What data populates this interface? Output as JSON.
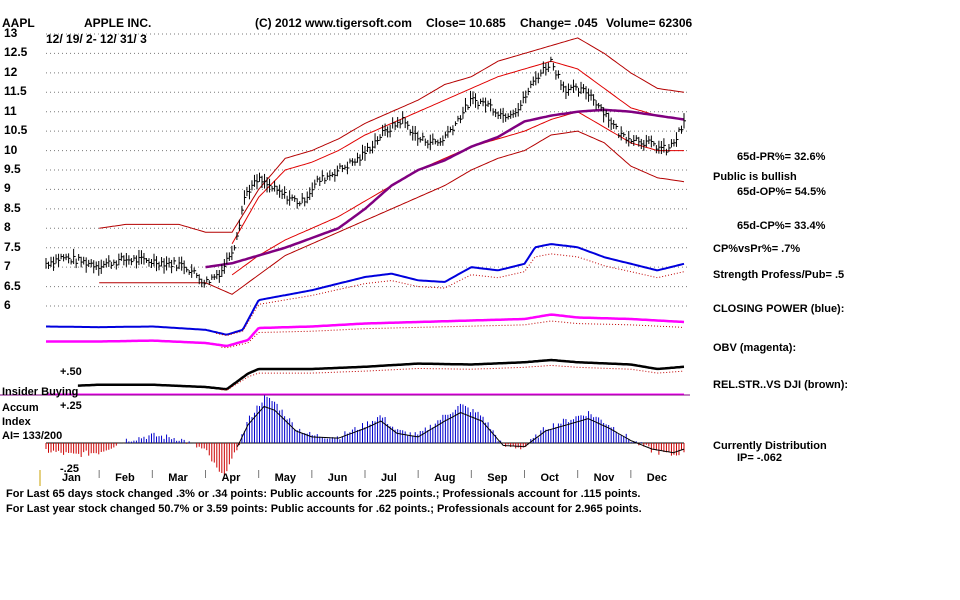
{
  "header": {
    "ticker": "AAPL",
    "company": "APPLE INC.",
    "copyright": "(C) 2012 www.tigersoft.com",
    "close": "Close=  10.685",
    "change": "Change= .045",
    "volume": "Volume= 62306",
    "date_range": "12/ 19/ 2- 12/ 31/ 3"
  },
  "side_labels": {
    "pr": "65d-PR%= 32.6%",
    "public": "Public is bullish",
    "op": "65d-OP%= 54.5%",
    "cp": "65d-CP%= 33.4%",
    "cpvspr": "CP%vsPr%=  .7%",
    "strength": "Strength Profess/Pub= .5",
    "closing_power": "CLOSING POWER (blue):",
    "obv": "OBV (magenta):",
    "relstr": "REL.STR..VS DJI (brown):",
    "distribution": "Currently Distribution",
    "ip": "IP= -.062"
  },
  "indicator_labels": {
    "insider_1": "Insider Buying",
    "insider_2": "Accum",
    "insider_3": "Index",
    "ai": "AI= 133/200",
    "plus50": "+.50",
    "plus25": "+.25",
    "minus25": "-.25"
  },
  "footer": {
    "line1": "For Last 65 days stock changed  .3% or  .34 points:  Public accounts for  .225 points.;  Professionals account for  .115 points.",
    "line2": "For Last year stock changed  50.7% or  3.59 points:  Public accounts for  .62 points.;  Professionals account for  2.965 points."
  },
  "colors": {
    "price": "#000000",
    "band": "#b40000",
    "ma": "#800080",
    "closing_power": "#0000dd",
    "obv": "#ff00ff",
    "relstr": "#000000",
    "accum_pos": "#0000cc",
    "accum_neg": "#cc0000",
    "grid": "#7a7a7a"
  },
  "chart_data": {
    "type": "line",
    "title": "APPLE INC. (AAPL) 12/19/2 - 12/31/3",
    "ylim": [
      6,
      13
    ],
    "y_ticks": [
      "13",
      "12.5",
      "12",
      "11.5",
      "11",
      "10.5",
      "10",
      "9.5",
      "9",
      "8.5",
      "8",
      "7.5",
      "7",
      "6.5",
      "6"
    ],
    "months": [
      "Jan",
      "Feb",
      "Mar",
      "Apr",
      "May",
      "Jun",
      "Jul",
      "Aug",
      "Sep",
      "Oct",
      "Nov",
      "Dec"
    ],
    "price_anchors": [
      [
        0,
        7.1
      ],
      [
        0.3,
        7.25
      ],
      [
        1.0,
        7.05
      ],
      [
        1.5,
        7.2
      ],
      [
        2.0,
        7.15
      ],
      [
        2.6,
        7.05
      ],
      [
        3.0,
        6.6
      ],
      [
        3.3,
        6.9
      ],
      [
        3.55,
        7.6
      ],
      [
        3.75,
        8.9
      ],
      [
        4.0,
        9.25
      ],
      [
        4.4,
        8.9
      ],
      [
        4.8,
        8.65
      ],
      [
        5.1,
        9.2
      ],
      [
        5.5,
        9.5
      ],
      [
        5.9,
        9.8
      ],
      [
        6.3,
        10.4
      ],
      [
        6.7,
        10.8
      ],
      [
        7.0,
        10.3
      ],
      [
        7.4,
        10.2
      ],
      [
        7.7,
        10.7
      ],
      [
        8.0,
        11.3
      ],
      [
        8.3,
        11.2
      ],
      [
        8.6,
        10.9
      ],
      [
        8.9,
        11.1
      ],
      [
        9.2,
        11.85
      ],
      [
        9.5,
        12.3
      ],
      [
        9.75,
        11.6
      ],
      [
        10.2,
        11.5
      ],
      [
        10.5,
        11.0
      ],
      [
        10.8,
        10.4
      ],
      [
        11.1,
        10.3
      ],
      [
        11.4,
        10.15
      ],
      [
        11.7,
        10.0
      ],
      [
        11.85,
        10.3
      ],
      [
        12.0,
        10.7
      ]
    ],
    "ma_anchors": [
      [
        3.0,
        7.0
      ],
      [
        3.5,
        7.1
      ],
      [
        4.0,
        7.3
      ],
      [
        4.5,
        7.5
      ],
      [
        5.0,
        7.75
      ],
      [
        5.5,
        8.0
      ],
      [
        6.0,
        8.5
      ],
      [
        6.5,
        9.1
      ],
      [
        7.0,
        9.5
      ],
      [
        7.5,
        9.75
      ],
      [
        8.0,
        10.1
      ],
      [
        8.5,
        10.35
      ],
      [
        9.0,
        10.75
      ],
      [
        9.5,
        10.9
      ],
      [
        10.0,
        11.0
      ],
      [
        10.5,
        11.05
      ],
      [
        11.0,
        11.0
      ],
      [
        11.5,
        10.9
      ],
      [
        12.0,
        10.8
      ]
    ],
    "upper_band_anchors": [
      [
        1.0,
        8.0
      ],
      [
        1.5,
        8.1
      ],
      [
        2.5,
        8.1
      ],
      [
        3.0,
        7.9
      ],
      [
        3.5,
        7.9
      ],
      [
        4.0,
        9.0
      ],
      [
        4.5,
        9.8
      ],
      [
        5.0,
        10.0
      ],
      [
        5.5,
        10.3
      ],
      [
        6.0,
        10.7
      ],
      [
        6.5,
        11.0
      ],
      [
        7.0,
        11.3
      ],
      [
        7.5,
        11.7
      ],
      [
        8.0,
        11.9
      ],
      [
        8.5,
        12.3
      ],
      [
        9.0,
        12.5
      ],
      [
        9.5,
        12.7
      ],
      [
        10.0,
        12.9
      ],
      [
        10.5,
        12.5
      ],
      [
        11.0,
        12.0
      ],
      [
        11.5,
        11.6
      ],
      [
        12.0,
        11.5
      ]
    ],
    "lower_band_anchors": [
      [
        1.0,
        6.6
      ],
      [
        2.0,
        6.6
      ],
      [
        3.0,
        6.6
      ],
      [
        3.5,
        6.3
      ],
      [
        4.0,
        6.8
      ],
      [
        4.5,
        7.3
      ],
      [
        5.0,
        7.6
      ],
      [
        5.5,
        7.9
      ],
      [
        6.0,
        8.2
      ],
      [
        6.5,
        8.5
      ],
      [
        7.0,
        8.8
      ],
      [
        7.5,
        9.1
      ],
      [
        8.0,
        9.5
      ],
      [
        8.5,
        9.8
      ],
      [
        9.0,
        10.0
      ],
      [
        9.5,
        10.4
      ],
      [
        10.0,
        10.5
      ],
      [
        10.5,
        10.2
      ],
      [
        11.0,
        9.6
      ],
      [
        11.5,
        9.3
      ],
      [
        12.0,
        9.2
      ]
    ],
    "inner_upper_anchors": [
      [
        3.5,
        7.6
      ],
      [
        4.0,
        8.8
      ],
      [
        4.5,
        9.5
      ],
      [
        5.0,
        9.7
      ],
      [
        5.5,
        10.0
      ],
      [
        6.0,
        10.4
      ],
      [
        6.5,
        10.7
      ],
      [
        7.0,
        11.0
      ],
      [
        7.5,
        11.3
      ],
      [
        8.0,
        11.6
      ],
      [
        8.5,
        11.9
      ],
      [
        9.0,
        12.1
      ],
      [
        9.5,
        12.3
      ],
      [
        10.0,
        12.1
      ],
      [
        10.5,
        11.6
      ],
      [
        11.0,
        11.1
      ],
      [
        11.5,
        10.9
      ],
      [
        12.0,
        10.8
      ]
    ],
    "inner_lower_anchors": [
      [
        3.5,
        6.8
      ],
      [
        4.0,
        7.3
      ],
      [
        4.5,
        7.7
      ],
      [
        5.0,
        8.0
      ],
      [
        5.5,
        8.3
      ],
      [
        6.0,
        8.7
      ],
      [
        6.5,
        9.1
      ],
      [
        7.0,
        9.5
      ],
      [
        7.5,
        9.8
      ],
      [
        8.0,
        10.1
      ],
      [
        8.5,
        10.3
      ],
      [
        9.0,
        10.5
      ],
      [
        9.5,
        10.8
      ],
      [
        10.0,
        11.0
      ],
      [
        10.5,
        10.6
      ],
      [
        11.0,
        10.2
      ],
      [
        11.5,
        10.0
      ],
      [
        12.0,
        10.0
      ]
    ],
    "closing_power_anchors": [
      [
        0,
        0.5
      ],
      [
        1.0,
        0.48
      ],
      [
        2.0,
        0.5
      ],
      [
        3.0,
        0.4
      ],
      [
        3.4,
        0.25
      ],
      [
        3.7,
        0.4
      ],
      [
        4.0,
        1.3
      ],
      [
        4.5,
        1.45
      ],
      [
        5.0,
        1.6
      ],
      [
        5.5,
        1.8
      ],
      [
        6.0,
        2.0
      ],
      [
        6.5,
        2.1
      ],
      [
        7.0,
        1.9
      ],
      [
        7.5,
        1.85
      ],
      [
        8.0,
        2.3
      ],
      [
        8.5,
        2.2
      ],
      [
        9.0,
        2.4
      ],
      [
        9.2,
        2.9
      ],
      [
        9.5,
        3.0
      ],
      [
        10.0,
        2.9
      ],
      [
        10.5,
        2.6
      ],
      [
        11.0,
        2.4
      ],
      [
        11.5,
        2.2
      ],
      [
        12.0,
        2.4
      ]
    ],
    "obv_anchors": [
      [
        0,
        0.55
      ],
      [
        1.0,
        0.55
      ],
      [
        2.0,
        0.58
      ],
      [
        3.0,
        0.5
      ],
      [
        3.4,
        0.4
      ],
      [
        3.8,
        0.6
      ],
      [
        4.0,
        1.0
      ],
      [
        5.0,
        1.05
      ],
      [
        6.0,
        1.15
      ],
      [
        7.0,
        1.2
      ],
      [
        8.0,
        1.25
      ],
      [
        9.0,
        1.3
      ],
      [
        9.5,
        1.45
      ],
      [
        10.0,
        1.35
      ],
      [
        11.0,
        1.3
      ],
      [
        12.0,
        1.2
      ]
    ],
    "relstr_anchors": [
      [
        0,
        0.2
      ],
      [
        1.0,
        0.25
      ],
      [
        2.0,
        0.25
      ],
      [
        3.0,
        0.2
      ],
      [
        3.4,
        0.15
      ],
      [
        3.8,
        0.5
      ],
      [
        4.0,
        0.6
      ],
      [
        5.0,
        0.6
      ],
      [
        6.0,
        0.65
      ],
      [
        7.0,
        0.72
      ],
      [
        8.0,
        0.7
      ],
      [
        9.0,
        0.75
      ],
      [
        9.5,
        0.8
      ],
      [
        10.0,
        0.75
      ],
      [
        11.0,
        0.7
      ],
      [
        11.5,
        0.6
      ],
      [
        12.0,
        0.65
      ]
    ],
    "accum_anchors": [
      [
        0,
        -0.05
      ],
      [
        0.5,
        -0.08
      ],
      [
        1.0,
        -0.06
      ],
      [
        1.5,
        0.02
      ],
      [
        2.0,
        0.05
      ],
      [
        2.5,
        0.03
      ],
      [
        3.0,
        -0.05
      ],
      [
        3.3,
        -0.22
      ],
      [
        3.5,
        -0.12
      ],
      [
        3.8,
        0.15
      ],
      [
        4.1,
        0.3
      ],
      [
        4.3,
        0.27
      ],
      [
        4.7,
        0.1
      ],
      [
        5.0,
        0.05
      ],
      [
        5.5,
        0.04
      ],
      [
        6.0,
        0.12
      ],
      [
        6.3,
        0.18
      ],
      [
        6.6,
        0.08
      ],
      [
        7.0,
        0.05
      ],
      [
        7.5,
        0.18
      ],
      [
        7.8,
        0.25
      ],
      [
        8.2,
        0.18
      ],
      [
        8.6,
        -0.02
      ],
      [
        9.0,
        -0.03
      ],
      [
        9.4,
        0.1
      ],
      [
        9.8,
        0.15
      ],
      [
        10.2,
        0.2
      ],
      [
        10.6,
        0.12
      ],
      [
        11.0,
        0.02
      ],
      [
        11.4,
        -0.05
      ],
      [
        11.8,
        -0.08
      ],
      [
        12.0,
        -0.05
      ]
    ]
  }
}
